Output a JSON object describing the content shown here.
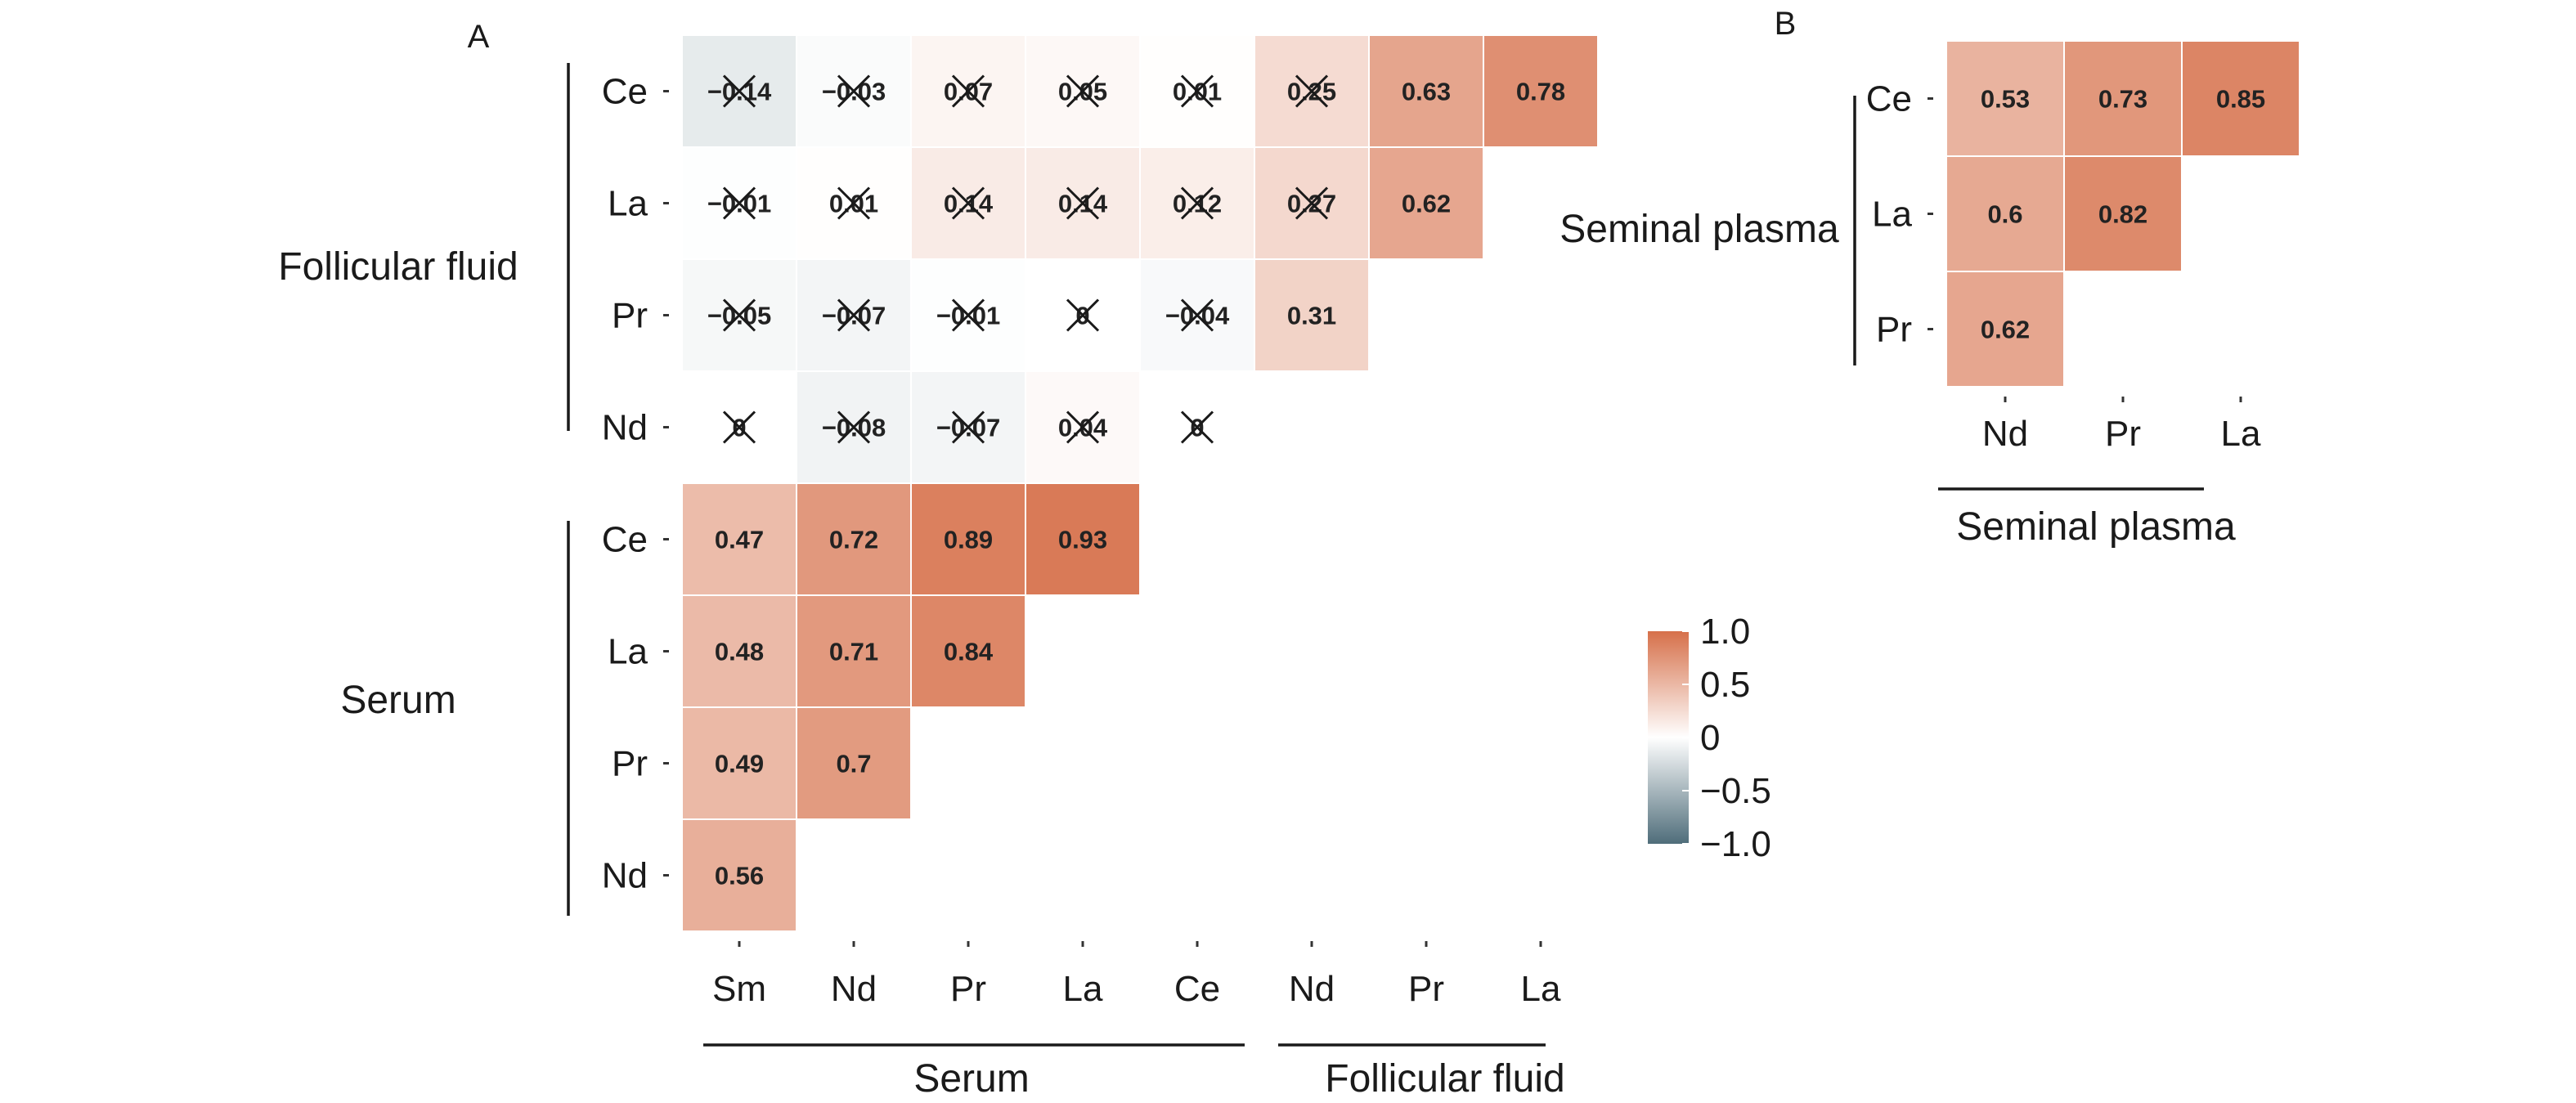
{
  "colors": {
    "positive": "#d6704a",
    "zero": "#ffffff",
    "negative": "#4f6d7a",
    "cross": "#1a1a1a"
  },
  "chart_data": [
    {
      "type": "heatmap",
      "panel_label": "A",
      "x_categories": [
        "Sm",
        "Nd",
        "Pr",
        "La",
        "Ce",
        "Nd",
        "Pr",
        "La"
      ],
      "x_groups": [
        {
          "label": "Serum",
          "span": [
            0,
            4
          ]
        },
        {
          "label": "Follicular fluid",
          "span": [
            5,
            7
          ]
        }
      ],
      "y_categories": [
        "Ce",
        "La",
        "Pr",
        "Nd",
        "Ce",
        "La",
        "Pr",
        "Nd"
      ],
      "y_groups": [
        {
          "label": "Follicular fluid",
          "span": [
            0,
            3
          ]
        },
        {
          "label": "Serum",
          "span": [
            4,
            7
          ]
        }
      ],
      "values": [
        [
          -0.14,
          -0.03,
          0.07,
          0.05,
          0.01,
          0.25,
          0.63,
          0.78
        ],
        [
          -0.01,
          0.01,
          0.14,
          0.14,
          0.12,
          0.27,
          0.62,
          null
        ],
        [
          -0.05,
          -0.07,
          -0.01,
          0,
          -0.04,
          0.31,
          null,
          null
        ],
        [
          0,
          -0.08,
          -0.07,
          0.04,
          0,
          null,
          null,
          null
        ],
        [
          0.47,
          0.72,
          0.89,
          0.93,
          null,
          null,
          null,
          null
        ],
        [
          0.48,
          0.71,
          0.84,
          null,
          null,
          null,
          null,
          null
        ],
        [
          0.49,
          0.7,
          null,
          null,
          null,
          null,
          null,
          null
        ],
        [
          0.56,
          null,
          null,
          null,
          null,
          null,
          null,
          null
        ]
      ],
      "labels": [
        [
          "−0.14",
          "−0.03",
          "0.07",
          "0.05",
          "0.01",
          "0.25",
          "0.63",
          "0.78"
        ],
        [
          "−0.01",
          "0.01",
          "0.14",
          "0.14",
          "0.12",
          "0.27",
          "0.62",
          null
        ],
        [
          "−0.05",
          "−0.07",
          "−0.01",
          "0",
          "−0.04",
          "0.31",
          null,
          null
        ],
        [
          "0",
          "−0.08",
          "−0.07",
          "0.04",
          "0",
          null,
          null,
          null
        ],
        [
          "0.47",
          "0.72",
          "0.89",
          "0.93",
          null,
          null,
          null,
          null
        ],
        [
          "0.48",
          "0.71",
          "0.84",
          null,
          null,
          null,
          null,
          null
        ],
        [
          "0.49",
          "0.7",
          null,
          null,
          null,
          null,
          null,
          null
        ],
        [
          "0.56",
          null,
          null,
          null,
          null,
          null,
          null,
          null
        ]
      ],
      "crossed": [
        [
          true,
          true,
          true,
          true,
          true,
          true,
          false,
          false
        ],
        [
          true,
          true,
          true,
          true,
          true,
          true,
          false,
          null
        ],
        [
          true,
          true,
          true,
          true,
          true,
          false,
          null,
          null
        ],
        [
          true,
          true,
          true,
          true,
          true,
          null,
          null,
          null
        ],
        [
          false,
          false,
          false,
          false,
          null,
          null,
          null,
          null
        ],
        [
          false,
          false,
          false,
          null,
          null,
          null,
          null,
          null
        ],
        [
          false,
          false,
          null,
          null,
          null,
          null,
          null,
          null
        ],
        [
          false,
          null,
          null,
          null,
          null,
          null,
          null,
          null
        ]
      ]
    },
    {
      "type": "heatmap",
      "panel_label": "B",
      "x_categories": [
        "Nd",
        "Pr",
        "La"
      ],
      "x_groups": [
        {
          "label": "Seminal plasma",
          "span": [
            0,
            2
          ]
        }
      ],
      "y_categories": [
        "Ce",
        "La",
        "Pr"
      ],
      "y_groups": [
        {
          "label": "Seminal plasma",
          "span": [
            0,
            2
          ]
        }
      ],
      "values": [
        [
          0.53,
          0.73,
          0.85
        ],
        [
          0.6,
          0.82,
          null
        ],
        [
          0.62,
          null,
          null
        ]
      ],
      "labels": [
        [
          "0.53",
          "0.73",
          "0.85"
        ],
        [
          "0.6",
          "0.82",
          null
        ],
        [
          "0.62",
          null,
          null
        ]
      ],
      "crossed": [
        [
          false,
          false,
          false
        ],
        [
          false,
          false,
          null
        ],
        [
          false,
          null,
          null
        ]
      ]
    }
  ],
  "legend": {
    "range": [
      -1.0,
      1.0
    ],
    "ticks": [
      {
        "value": 1.0,
        "label": "1.0"
      },
      {
        "value": 0.5,
        "label": "0.5"
      },
      {
        "value": 0,
        "label": "0"
      },
      {
        "value": -0.5,
        "label": "−0.5"
      },
      {
        "value": -1.0,
        "label": "−1.0"
      }
    ]
  }
}
